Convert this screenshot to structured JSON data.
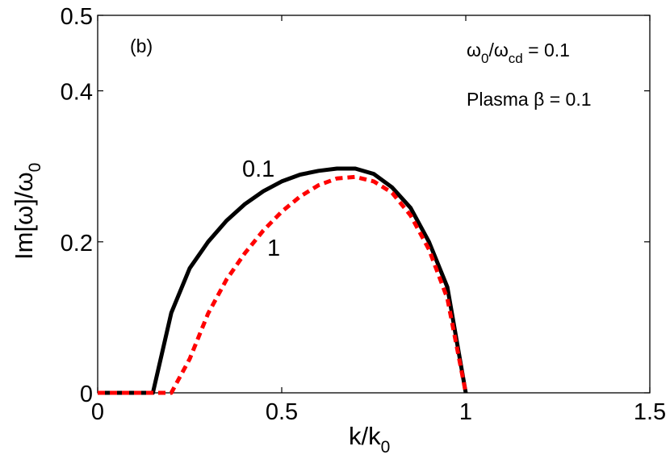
{
  "chart_data": {
    "type": "line",
    "panel_label": "(b)",
    "xlabel": {
      "main": "k/k",
      "sub": "0"
    },
    "ylabel": {
      "main": "Im[ω]/ω",
      "sub": "0"
    },
    "xlim": [
      0,
      1.5
    ],
    "ylim": [
      0,
      0.5
    ],
    "xticks": [
      0,
      0.5,
      1,
      1.5
    ],
    "xtick_labels": [
      "0",
      "0.5",
      "1",
      "1.5"
    ],
    "yticks": [
      0,
      0.2,
      0.4,
      0.5
    ],
    "ytick_labels": [
      "0",
      "0.2",
      "0.4",
      "0.5"
    ],
    "annotations": {
      "ratio": {
        "w": "ω",
        "sub1": "0",
        "slash": "/ω",
        "sub2": "cd",
        "rest": " = 0.1"
      },
      "beta": "Plasma β = 0.1"
    },
    "series": [
      {
        "name": "0.1",
        "color": "#000000",
        "style": "solid",
        "x": [
          0,
          0.15,
          0.2,
          0.25,
          0.3,
          0.35,
          0.4,
          0.45,
          0.5,
          0.55,
          0.6,
          0.65,
          0.7,
          0.75,
          0.8,
          0.85,
          0.9,
          0.95,
          1.0
        ],
        "y": [
          0,
          0,
          0.106,
          0.165,
          0.2,
          0.228,
          0.25,
          0.267,
          0.28,
          0.289,
          0.294,
          0.297,
          0.297,
          0.29,
          0.272,
          0.245,
          0.2,
          0.14,
          0
        ]
      },
      {
        "name": "1",
        "color": "#ff0000",
        "style": "dashed",
        "x": [
          0,
          0.2,
          0.25,
          0.3,
          0.35,
          0.4,
          0.45,
          0.5,
          0.55,
          0.6,
          0.65,
          0.7,
          0.75,
          0.8,
          0.85,
          0.9,
          0.95,
          1.0
        ],
        "y": [
          0,
          0,
          0.045,
          0.105,
          0.15,
          0.185,
          0.215,
          0.24,
          0.26,
          0.275,
          0.284,
          0.286,
          0.28,
          0.265,
          0.235,
          0.19,
          0.125,
          0
        ]
      }
    ]
  }
}
